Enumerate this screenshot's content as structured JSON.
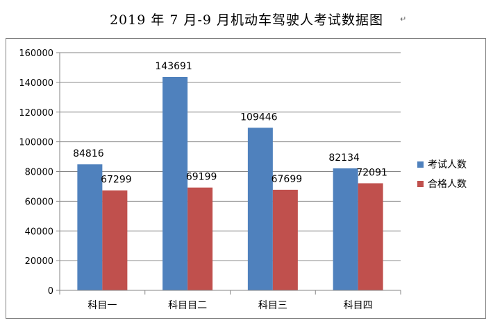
{
  "title": "2019 年 7 月-9 月机动车驾驶人考试数据图",
  "title_mark": "↵",
  "chart_data": {
    "type": "bar",
    "title": "2019 年 7 月-9 月机动车驾驶人考试数据图",
    "categories": [
      "科目一",
      "科目目二",
      "科目三",
      "科目四"
    ],
    "series": [
      {
        "name": "考试人数",
        "color": "#4f81bd",
        "values": [
          84816,
          143691,
          109446,
          82134
        ]
      },
      {
        "name": "合格人数",
        "color": "#c0504d",
        "values": [
          67299,
          69199,
          67699,
          72091
        ]
      }
    ],
    "ylim": [
      0,
      160000
    ],
    "yticks": [
      0,
      20000,
      40000,
      60000,
      80000,
      100000,
      120000,
      140000,
      160000
    ],
    "grid": true,
    "legend_position": "right",
    "data_labels": true
  }
}
